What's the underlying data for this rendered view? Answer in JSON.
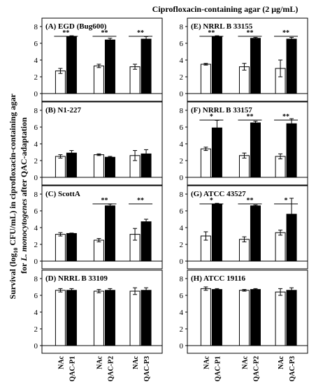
{
  "figure_title": "Ciprofloxacin-containing agar (2 μg/mL)",
  "y_axis_label": {
    "line1_pre": "Survival (log",
    "line1_sub": "10",
    "line1_post": " CFU/mL) in ciprofloxacin-containing agar",
    "line2_pre": "for ",
    "line2_ital": "L. monocytogenes",
    "line2_post": " after QAC-adaptation"
  },
  "x_categories": [
    "NAc",
    "QAC-P1",
    "NAc",
    "QAC-P2",
    "NAc",
    "QAC-P3"
  ],
  "colors": {
    "nac": "#ffffff",
    "qac": "#000000",
    "axis": "#000000"
  },
  "chart_data": [
    {
      "type": "bar",
      "title": "(A) EGD (Bug600)",
      "ylim": [
        0,
        8
      ],
      "yticks": [
        0,
        2,
        4,
        6,
        8
      ],
      "groups": [
        "P1",
        "P2",
        "P3"
      ],
      "series": [
        {
          "name": "NAc",
          "values": [
            2.7,
            3.3,
            3.2
          ],
          "errors": [
            0.3,
            0.2,
            0.3
          ]
        },
        {
          "name": "QAC",
          "values": [
            6.8,
            6.4,
            6.5
          ],
          "errors": [
            0.1,
            0.2,
            0.3
          ]
        }
      ],
      "significance": [
        "**",
        "**",
        "**"
      ]
    },
    {
      "type": "bar",
      "title": "(B) N1-227",
      "ylim": [
        0,
        8
      ],
      "yticks": [
        0,
        2,
        4,
        6,
        8
      ],
      "groups": [
        "P1",
        "P2",
        "P3"
      ],
      "series": [
        {
          "name": "NAc",
          "values": [
            2.5,
            2.7,
            2.6
          ],
          "errors": [
            0.2,
            0.1,
            0.6
          ]
        },
        {
          "name": "QAC",
          "values": [
            2.9,
            2.4,
            2.8
          ],
          "errors": [
            0.3,
            0.1,
            0.5
          ]
        }
      ],
      "significance": [
        "",
        "",
        ""
      ]
    },
    {
      "type": "bar",
      "title": "(C) ScottA",
      "ylim": [
        0,
        8
      ],
      "yticks": [
        0,
        2,
        4,
        6,
        8
      ],
      "groups": [
        "P1",
        "P2",
        "P3"
      ],
      "series": [
        {
          "name": "NAc",
          "values": [
            3.2,
            2.5,
            3.2
          ],
          "errors": [
            0.2,
            0.2,
            0.7
          ]
        },
        {
          "name": "QAC",
          "values": [
            3.3,
            6.6,
            4.7
          ],
          "errors": [
            0.05,
            0.2,
            0.3
          ]
        }
      ],
      "significance": [
        "",
        "**",
        "**"
      ]
    },
    {
      "type": "bar",
      "title": "(D) NRRL B 33109",
      "ylim": [
        0,
        8
      ],
      "yticks": [
        0,
        2,
        4,
        6,
        8
      ],
      "groups": [
        "P1",
        "P2",
        "P3"
      ],
      "series": [
        {
          "name": "NAc",
          "values": [
            6.6,
            6.5,
            6.5
          ],
          "errors": [
            0.2,
            0.2,
            0.4
          ]
        },
        {
          "name": "QAC",
          "values": [
            6.6,
            6.6,
            6.6
          ],
          "errors": [
            0.2,
            0.2,
            0.3
          ]
        }
      ],
      "significance": [
        "",
        "",
        ""
      ]
    },
    {
      "type": "bar",
      "title": "(E) NRRL B 33155",
      "ylim": [
        0,
        8
      ],
      "yticks": [
        0,
        2,
        4,
        6,
        8
      ],
      "groups": [
        "P1",
        "P2",
        "P3"
      ],
      "series": [
        {
          "name": "NAc",
          "values": [
            3.5,
            3.2,
            3.0
          ],
          "errors": [
            0.1,
            0.4,
            1.0
          ]
        },
        {
          "name": "QAC",
          "values": [
            6.8,
            6.6,
            6.5
          ],
          "errors": [
            0.1,
            0.1,
            0.2
          ]
        }
      ],
      "significance": [
        "**",
        "**",
        "**"
      ]
    },
    {
      "type": "bar",
      "title": "(F) NRRL B 33157",
      "ylim": [
        0,
        8
      ],
      "yticks": [
        0,
        2,
        4,
        6,
        8
      ],
      "groups": [
        "P1",
        "P2",
        "P3"
      ],
      "series": [
        {
          "name": "NAc",
          "values": [
            3.4,
            2.6,
            2.5
          ],
          "errors": [
            0.2,
            0.3,
            0.3
          ]
        },
        {
          "name": "QAC",
          "values": [
            5.9,
            6.5,
            6.4
          ],
          "errors": [
            0.9,
            0.2,
            0.6
          ]
        }
      ],
      "significance": [
        "*",
        "**",
        "**"
      ]
    },
    {
      "type": "bar",
      "title": "(G) ATCC 43527",
      "ylim": [
        0,
        8
      ],
      "yticks": [
        0,
        2,
        4,
        6,
        8
      ],
      "groups": [
        "P1",
        "P2",
        "P3"
      ],
      "series": [
        {
          "name": "NAc",
          "values": [
            3.0,
            2.6,
            3.4
          ],
          "errors": [
            0.5,
            0.3,
            0.3
          ]
        },
        {
          "name": "QAC",
          "values": [
            6.8,
            6.6,
            5.6
          ],
          "errors": [
            0.1,
            0.1,
            1.9
          ]
        }
      ],
      "significance": [
        "*",
        "**",
        "*"
      ]
    },
    {
      "type": "bar",
      "title": "(H) ATCC 19116",
      "ylim": [
        0,
        8
      ],
      "yticks": [
        0,
        2,
        4,
        6,
        8
      ],
      "groups": [
        "P1",
        "P2",
        "P3"
      ],
      "series": [
        {
          "name": "NAc",
          "values": [
            6.8,
            6.6,
            6.4
          ],
          "errors": [
            0.2,
            0.1,
            0.4
          ]
        },
        {
          "name": "QAC",
          "values": [
            6.7,
            6.7,
            6.6
          ],
          "errors": [
            0.1,
            0.1,
            0.3
          ]
        }
      ],
      "significance": [
        "",
        "",
        ""
      ]
    }
  ]
}
